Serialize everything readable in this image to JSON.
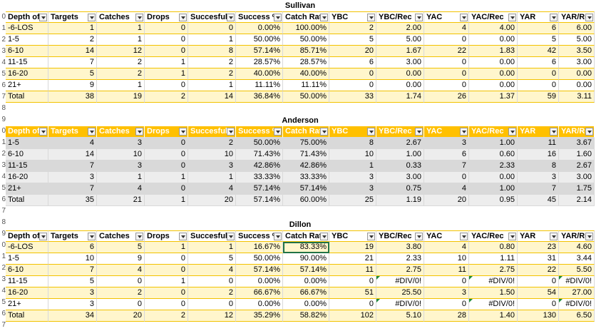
{
  "columns": [
    "Depth of",
    "Targets",
    "Catches",
    "Drops",
    "Succesful",
    "Success %",
    "Catch Rat",
    "YBC",
    "YBC/Rec",
    "YAC",
    "YAC/Rec",
    "YAR",
    "YAR/Rec"
  ],
  "row_numbers": [
    "",
    "0",
    "1",
    "2",
    "3",
    "4",
    "5",
    "6",
    "7",
    "8",
    "9",
    "0",
    "1",
    "2",
    "3",
    "4",
    "5",
    "6",
    "7",
    "8",
    "9",
    "0",
    "1",
    "2",
    "3",
    "4",
    "5",
    "6",
    "7"
  ],
  "tables": [
    {
      "title": "Sullivan",
      "rows": [
        [
          "-6-LOS",
          "1",
          "1",
          "0",
          "0",
          "0.00%",
          "100.00%",
          "2",
          "2.00",
          "4",
          "4.00",
          "6",
          "6.00"
        ],
        [
          "1-5",
          "2",
          "1",
          "0",
          "1",
          "50.00%",
          "50.00%",
          "5",
          "5.00",
          "0",
          "0.00",
          "5",
          "5.00"
        ],
        [
          "6-10",
          "14",
          "12",
          "0",
          "8",
          "57.14%",
          "85.71%",
          "20",
          "1.67",
          "22",
          "1.83",
          "42",
          "3.50"
        ],
        [
          "11-15",
          "7",
          "2",
          "1",
          "2",
          "28.57%",
          "28.57%",
          "6",
          "3.00",
          "0",
          "0.00",
          "6",
          "3.00"
        ],
        [
          "16-20",
          "5",
          "2",
          "1",
          "2",
          "40.00%",
          "40.00%",
          "0",
          "0.00",
          "0",
          "0.00",
          "0",
          "0.00"
        ],
        [
          "21+",
          "9",
          "1",
          "0",
          "1",
          "11.11%",
          "11.11%",
          "0",
          "0.00",
          "0",
          "0.00",
          "0",
          "0.00"
        ],
        [
          "Total",
          "38",
          "19",
          "2",
          "14",
          "36.84%",
          "50.00%",
          "33",
          "1.74",
          "26",
          "1.37",
          "59",
          "3.11"
        ]
      ]
    },
    {
      "title": "Anderson",
      "rows": [
        [
          "1-5",
          "4",
          "3",
          "0",
          "2",
          "50.00%",
          "75.00%",
          "8",
          "2.67",
          "3",
          "1.00",
          "11",
          "3.67"
        ],
        [
          "6-10",
          "14",
          "10",
          "0",
          "10",
          "71.43%",
          "71.43%",
          "10",
          "1.00",
          "6",
          "0.60",
          "16",
          "1.60"
        ],
        [
          "11-15",
          "7",
          "3",
          "0",
          "3",
          "42.86%",
          "42.86%",
          "1",
          "0.33",
          "7",
          "2.33",
          "8",
          "2.67"
        ],
        [
          "16-20",
          "3",
          "1",
          "1",
          "1",
          "33.33%",
          "33.33%",
          "3",
          "3.00",
          "0",
          "0.00",
          "3",
          "3.00"
        ],
        [
          "21+",
          "7",
          "4",
          "0",
          "4",
          "57.14%",
          "57.14%",
          "3",
          "0.75",
          "4",
          "1.00",
          "7",
          "1.75"
        ],
        [
          "Total",
          "35",
          "21",
          "1",
          "20",
          "57.14%",
          "60.00%",
          "25",
          "1.19",
          "20",
          "0.95",
          "45",
          "2.14"
        ]
      ]
    },
    {
      "title": "Dillon",
      "rows": [
        [
          "-6-LOS",
          "6",
          "5",
          "1",
          "1",
          "16.67%",
          "83.33%",
          "19",
          "3.80",
          "4",
          "0.80",
          "23",
          "4.60"
        ],
        [
          "1-5",
          "10",
          "9",
          "0",
          "5",
          "50.00%",
          "90.00%",
          "21",
          "2.33",
          "10",
          "1.11",
          "31",
          "3.44"
        ],
        [
          "6-10",
          "7",
          "4",
          "0",
          "4",
          "57.14%",
          "57.14%",
          "11",
          "2.75",
          "11",
          "2.75",
          "22",
          "5.50"
        ],
        [
          "11-15",
          "5",
          "0",
          "1",
          "0",
          "0.00%",
          "0.00%",
          "0",
          "#DIV/0!",
          "0",
          "#DIV/0!",
          "0",
          "#DIV/0!"
        ],
        [
          "16-20",
          "3",
          "2",
          "0",
          "2",
          "66.67%",
          "66.67%",
          "51",
          "25.50",
          "3",
          "1.50",
          "54",
          "27.00"
        ],
        [
          "21+",
          "3",
          "0",
          "0",
          "0",
          "0.00%",
          "0.00%",
          "0",
          "#DIV/0!",
          "0",
          "#DIV/0!",
          "0",
          "#DIV/0!"
        ],
        [
          "Total",
          "34",
          "20",
          "2",
          "12",
          "35.29%",
          "58.82%",
          "102",
          "5.10",
          "28",
          "1.40",
          "130",
          "6.50"
        ]
      ]
    }
  ],
  "colors": {
    "yellow_band": "#fff6cc",
    "yellow_border": "#f2c200",
    "orange_header": "#ffc000",
    "gray_band": "#d9d9d9",
    "selection": "#217346"
  }
}
